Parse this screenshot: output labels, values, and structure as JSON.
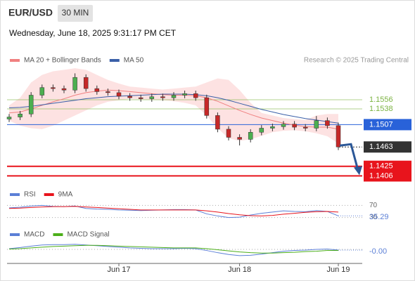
{
  "header": {
    "symbol": "EUR/USD",
    "timeframe": "30 MIN",
    "datetime": "Wednesday, June 18, 2025 9:31:17 PM CET",
    "credit": "Research © 2025 Trading Central"
  },
  "chart_data": [
    {
      "type": "candlestick",
      "categories": [
        null,
        null,
        null,
        null,
        null,
        null,
        null,
        null,
        null,
        null,
        "Jun 17",
        null,
        null,
        null,
        null,
        null,
        null,
        null,
        null,
        null,
        null,
        "Jun 18",
        null,
        null,
        null,
        null,
        null,
        null,
        null,
        null,
        "Jun 19"
      ],
      "open": [
        1.1518,
        1.1522,
        1.1528,
        1.1565,
        1.158,
        1.1578,
        1.1575,
        1.16,
        1.1578,
        1.1572,
        1.157,
        1.1563,
        1.156,
        1.1558,
        1.1562,
        1.156,
        1.1565,
        1.1568,
        1.156,
        1.1525,
        1.1498,
        1.1482,
        1.1478,
        1.1492,
        1.15,
        1.1503,
        1.1508,
        1.1502,
        1.15,
        1.1515,
        1.1505
      ],
      "high": [
        1.1528,
        1.1534,
        1.1571,
        1.1586,
        1.1586,
        1.1584,
        1.1608,
        1.1606,
        1.1584,
        1.1578,
        1.1576,
        1.1569,
        1.1566,
        1.1568,
        1.1568,
        1.1571,
        1.1574,
        1.1574,
        1.1566,
        1.1531,
        1.1504,
        1.1488,
        1.1498,
        1.1506,
        1.1509,
        1.1514,
        1.1514,
        1.1508,
        1.1524,
        1.1521,
        1.1511
      ],
      "low": [
        1.1512,
        1.1516,
        1.1522,
        1.1559,
        1.1572,
        1.1569,
        1.1569,
        1.1572,
        1.1566,
        1.1564,
        1.1557,
        1.1554,
        1.1552,
        1.1552,
        1.1554,
        1.1554,
        1.1559,
        1.1554,
        1.1519,
        1.1492,
        1.1476,
        1.1466,
        1.1472,
        1.1486,
        1.1494,
        1.1497,
        1.1496,
        1.1494,
        1.1494,
        1.1499,
        1.1457
      ],
      "close": [
        1.1522,
        1.1528,
        1.1565,
        1.158,
        1.1578,
        1.1575,
        1.16,
        1.1578,
        1.1572,
        1.157,
        1.1563,
        1.156,
        1.1558,
        1.1562,
        1.156,
        1.1565,
        1.1568,
        1.156,
        1.1525,
        1.1498,
        1.1482,
        1.1478,
        1.1492,
        1.15,
        1.1503,
        1.1508,
        1.1502,
        1.15,
        1.1515,
        1.1505,
        1.1463
      ],
      "series": [
        {
          "name": "MA 20 + Bollinger Bands",
          "color": "#f08080",
          "values": [
            1.153,
            1.1532,
            1.1538,
            1.1545,
            1.1552,
            1.1558,
            1.1565,
            1.157,
            1.1573,
            1.1575,
            1.1574,
            1.1572,
            1.157,
            1.1568,
            1.1566,
            1.1565,
            1.1565,
            1.1564,
            1.156,
            1.1553,
            1.1544,
            1.1535,
            1.1527,
            1.152,
            1.1515,
            1.151,
            1.1506,
            1.1503,
            1.1502,
            1.1502,
            1.1498
          ]
        },
        {
          "name": "MA 50",
          "color": "#3a5fa8",
          "values": [
            1.154,
            1.1541,
            1.1543,
            1.1546,
            1.1549,
            1.1552,
            1.1555,
            1.1558,
            1.156,
            1.1562,
            1.1563,
            1.1564,
            1.1565,
            1.1566,
            1.1567,
            1.1567,
            1.1567,
            1.1566,
            1.1564,
            1.156,
            1.1555,
            1.1549,
            1.1543,
            1.1537,
            1.1532,
            1.1527,
            1.1523,
            1.1519,
            1.1516,
            1.1513,
            1.151
          ]
        }
      ],
      "bb_upper": [
        1.1545,
        1.156,
        1.159,
        1.1605,
        1.1612,
        1.1615,
        1.1618,
        1.1615,
        1.1605,
        1.1595,
        1.1588,
        1.1582,
        1.158,
        1.1578,
        1.1576,
        1.1578,
        1.158,
        1.1582,
        1.159,
        1.1598,
        1.1595,
        1.1575,
        1.155,
        1.153,
        1.1525,
        1.152,
        1.1518,
        1.1516,
        1.1525,
        1.1528,
        1.1528
      ],
      "bb_lower": [
        1.1515,
        1.1505,
        1.15,
        1.1498,
        1.1505,
        1.1515,
        1.1525,
        1.1535,
        1.1545,
        1.1552,
        1.1555,
        1.1558,
        1.1557,
        1.1556,
        1.1555,
        1.1553,
        1.155,
        1.1545,
        1.1525,
        1.15,
        1.148,
        1.1475,
        1.1478,
        1.1485,
        1.1492,
        1.1495,
        1.1496,
        1.1494,
        1.149,
        1.1484,
        1.147
      ],
      "ylim": [
        1.139,
        1.1621
      ],
      "levels": [
        {
          "value": 1.1556,
          "color": "#7cb342",
          "kind": "resistance"
        },
        {
          "value": 1.1538,
          "color": "#7cb342",
          "kind": "resistance"
        },
        {
          "value": 1.1507,
          "color": "#2962d9",
          "kind": "pivot"
        },
        {
          "value": 1.1463,
          "color": "#333333",
          "kind": "last"
        },
        {
          "value": 1.1425,
          "color": "#e8141c",
          "kind": "support"
        },
        {
          "value": 1.1406,
          "color": "#e8141c",
          "kind": "support"
        }
      ],
      "bull_color": "#4caf50",
      "bear_color": "#c62828"
    },
    {
      "type": "line",
      "series": [
        {
          "name": "RSI",
          "color": "#5b7fd6",
          "values": [
            62,
            64,
            68,
            70,
            67,
            66,
            68,
            60,
            58,
            57,
            55,
            54,
            53,
            54,
            55,
            56,
            56,
            55,
            42,
            35,
            30,
            31,
            38,
            44,
            48,
            52,
            50,
            49,
            53,
            50,
            35.29
          ]
        },
        {
          "name": "9MA",
          "color": "#e8141c",
          "values": [
            60,
            61,
            63,
            65,
            66,
            66,
            67,
            65,
            63,
            61,
            59,
            57,
            55,
            55,
            55,
            55,
            55,
            55,
            52,
            48,
            43,
            39,
            36,
            35,
            37,
            41,
            44,
            47,
            49,
            50,
            48
          ]
        }
      ],
      "ylim": [
        15,
        85
      ],
      "yticks": [
        70,
        30
      ]
    },
    {
      "type": "line",
      "series": [
        {
          "name": "MACD",
          "color": "#5b7fd6",
          "values": [
            0.0002,
            0.0005,
            0.0009,
            0.0012,
            0.0013,
            0.0013,
            0.0014,
            0.0012,
            0.001,
            0.0008,
            0.0006,
            0.0004,
            0.0003,
            0.0002,
            0.0002,
            0.0002,
            0.0003,
            0.0002,
            -0.0003,
            -0.0009,
            -0.0014,
            -0.0017,
            -0.0016,
            -0.0013,
            -0.0009,
            -0.0005,
            -0.0003,
            -0.0002,
            0.0,
            0.0001,
            -0.0002
          ],
          "last_label": "-0.00"
        },
        {
          "name": "MACD Signal",
          "color": "#4caf1a",
          "values": [
            0.0001,
            0.0002,
            0.0004,
            0.0006,
            0.0008,
            0.0009,
            0.001,
            0.0011,
            0.0011,
            0.001,
            0.0009,
            0.0008,
            0.0007,
            0.0006,
            0.0005,
            0.0004,
            0.0004,
            0.0004,
            0.0002,
            -0.0001,
            -0.0004,
            -0.0007,
            -0.0009,
            -0.001,
            -0.001,
            -0.0009,
            -0.0008,
            -0.0006,
            -0.0005,
            -0.0003,
            -0.0003
          ]
        }
      ],
      "ylim": [
        -0.0025,
        0.0025
      ]
    }
  ]
}
